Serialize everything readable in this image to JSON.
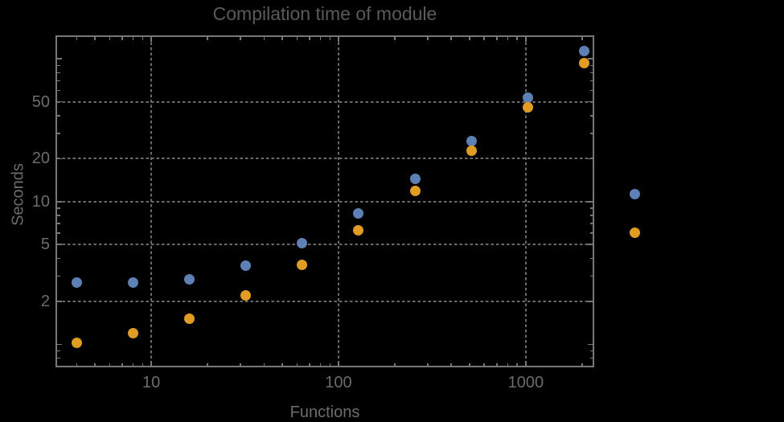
{
  "figure": {
    "title": "Compilation time of module",
    "background": "#000000"
  },
  "colors": {
    "series_blue": "#5E81B5",
    "series_orange": "#E19C24",
    "frame": "#777777",
    "grid": "#696969",
    "tick_text": "#6C6C6C",
    "title_text": "#5A5A5A",
    "background": "#000000"
  },
  "chart_data": {
    "type": "scatter",
    "title": "Compilation time of module",
    "xlabel": "Functions",
    "ylabel": "Seconds",
    "x_scale": "log",
    "y_scale": "log",
    "xlim": [
      3.08,
      2320
    ],
    "ylim": [
      0.69,
      146
    ],
    "grid": "dotted gridlines at labeled major ticks only, frame on all four sides with inward mirrored ticks",
    "x": [
      4,
      8,
      16,
      32,
      64,
      128,
      256,
      512,
      1024,
      2048
    ],
    "series": [
      {
        "name": "series-1-blue",
        "color": "#5E81B5",
        "values": [
          2.7,
          2.71,
          2.84,
          3.54,
          5.09,
          8.22,
          14.4,
          26.4,
          53.3,
          113
        ]
      },
      {
        "name": "series-2-orange",
        "color": "#E19C24",
        "values": [
          1.02,
          1.2,
          1.52,
          2.2,
          3.59,
          6.26,
          11.9,
          22.6,
          45.6,
          93.1
        ]
      }
    ],
    "x_ticks": [
      10,
      100,
      1000
    ],
    "x_tick_labels": [
      "10",
      "100",
      "1000"
    ],
    "y_ticks": [
      2,
      5,
      10,
      20,
      50
    ],
    "y_tick_labels": [
      "2",
      "5",
      "10",
      "20",
      "50"
    ],
    "y_unlabeled_major_ticks": [
      1,
      100
    ],
    "legend": {
      "position": "right-of-plot",
      "labels_visible": false,
      "markers": [
        {
          "series": "series-1-blue",
          "color": "#5E81B5"
        },
        {
          "series": "series-2-orange",
          "color": "#E19C24"
        }
      ]
    }
  }
}
